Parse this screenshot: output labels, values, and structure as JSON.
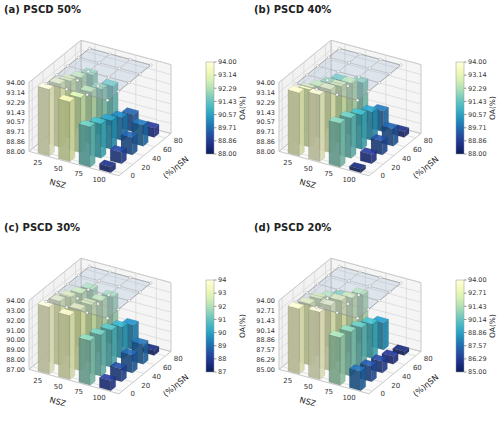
{
  "chart_data": [
    {
      "type": "bar3d",
      "title": "(a) PSCD 50%",
      "xlabel": "NSZ",
      "ylabel": "(%)ηSN",
      "x": [
        25,
        50,
        75,
        100
      ],
      "y": [
        0,
        20,
        40,
        60,
        80
      ],
      "values": [
        [
          93.8,
          93.2,
          91.5,
          88.5
        ],
        [
          93.5,
          92.8,
          91.0,
          89.0
        ],
        [
          93.0,
          92.5,
          90.5,
          89.5
        ],
        [
          92.5,
          92.0,
          90.0,
          89.8
        ],
        [
          92.0,
          91.5,
          89.5,
          88.8
        ]
      ],
      "xlim": [
        8,
        118
      ],
      "ylim": [
        -6,
        90
      ],
      "zlim": [
        88.0,
        94.0
      ],
      "xticks": [
        25,
        50,
        75,
        100
      ],
      "yticks": [
        0,
        20,
        40,
        60,
        80
      ],
      "zticks": [
        {
          "value": 88.0,
          "label": "88.00"
        },
        {
          "value": 88.86,
          "label": "88.86"
        },
        {
          "value": 89.71,
          "label": "89.71"
        },
        {
          "value": 90.57,
          "label": "90.57"
        },
        {
          "value": 91.43,
          "label": "91.43"
        },
        {
          "value": 92.29,
          "label": "92.29"
        },
        {
          "value": 93.14,
          "label": "93.14"
        },
        {
          "value": 94.0,
          "label": "94.00"
        }
      ],
      "colorbar_label": "OA(%)",
      "colorbar_range": [
        88.0,
        94.0
      ],
      "colorbar_ticks": [
        {
          "value": 88.0,
          "label": "88.00"
        },
        {
          "value": 88.86,
          "label": "88.86"
        },
        {
          "value": 89.71,
          "label": "89.71"
        },
        {
          "value": 90.57,
          "label": "90.57"
        },
        {
          "value": 91.43,
          "label": "91.43"
        },
        {
          "value": 92.29,
          "label": "92.29"
        },
        {
          "value": 93.14,
          "label": "93.14"
        },
        {
          "value": 94.0,
          "label": "94.00"
        }
      ],
      "grid": true
    },
    {
      "type": "bar3d",
      "title": "(b) PSCD 40%",
      "xlabel": "NSZ",
      "ylabel": "(%)ηSN",
      "x": [
        25,
        50,
        75,
        100
      ],
      "y": [
        0,
        20,
        40,
        60,
        80
      ],
      "values": [
        [
          93.5,
          93.8,
          91.8,
          88.3
        ],
        [
          93.0,
          93.5,
          91.5,
          88.8
        ],
        [
          92.5,
          93.0,
          91.0,
          89.2
        ],
        [
          92.0,
          92.5,
          90.5,
          89.5
        ],
        [
          91.5,
          91.8,
          89.8,
          88.5
        ]
      ],
      "xlim": [
        8,
        118
      ],
      "ylim": [
        -6,
        90
      ],
      "zlim": [
        88.0,
        94.0
      ],
      "xticks": [
        25,
        50,
        75,
        100
      ],
      "yticks": [
        0,
        20,
        40,
        60,
        80
      ],
      "zticks": [
        {
          "value": 88.0,
          "label": "88.00"
        },
        {
          "value": 88.86,
          "label": "88.86"
        },
        {
          "value": 89.71,
          "label": "89.71"
        },
        {
          "value": 90.57,
          "label": "90.57"
        },
        {
          "value": 91.43,
          "label": "91.43"
        },
        {
          "value": 92.29,
          "label": "92.29"
        },
        {
          "value": 93.14,
          "label": "93.14"
        },
        {
          "value": 94.0,
          "label": "94.00"
        }
      ],
      "colorbar_label": "OA(%)",
      "colorbar_range": [
        88.0,
        94.0
      ],
      "colorbar_ticks": [
        {
          "value": 88.0,
          "label": "88.00"
        },
        {
          "value": 88.86,
          "label": "88.86"
        },
        {
          "value": 89.71,
          "label": "89.71"
        },
        {
          "value": 90.57,
          "label": "90.57"
        },
        {
          "value": 91.43,
          "label": "91.43"
        },
        {
          "value": 92.29,
          "label": "92.29"
        },
        {
          "value": 93.14,
          "label": "93.14"
        },
        {
          "value": 94.0,
          "label": "94.00"
        }
      ],
      "grid": true
    },
    {
      "type": "bar3d",
      "title": "(c) PSCD 30%",
      "xlabel": "NSZ",
      "ylabel": "(%)ηSN",
      "x": [
        25,
        50,
        75,
        100
      ],
      "y": [
        0,
        20,
        40,
        60,
        80
      ],
      "values": [
        [
          93.8,
          93.5,
          91.5,
          88.0
        ],
        [
          93.5,
          93.2,
          91.2,
          88.3
        ],
        [
          93.0,
          92.8,
          90.8,
          88.8
        ],
        [
          92.5,
          92.3,
          90.2,
          89.0
        ],
        [
          92.0,
          91.8,
          89.5,
          87.5
        ]
      ],
      "xlim": [
        8,
        118
      ],
      "ylim": [
        -6,
        90
      ],
      "zlim": [
        87.0,
        94.0
      ],
      "xticks": [
        25,
        50,
        75,
        100
      ],
      "yticks": [
        0,
        20,
        40,
        60,
        80
      ],
      "zticks": [
        {
          "value": 87.0,
          "label": "87.00"
        },
        {
          "value": 88.0,
          "label": "88.00"
        },
        {
          "value": 89.0,
          "label": "89.00"
        },
        {
          "value": 90.0,
          "label": "90.00"
        },
        {
          "value": 91.0,
          "label": "91.00"
        },
        {
          "value": 92.0,
          "label": "92.00"
        },
        {
          "value": 93.0,
          "label": "93.00"
        },
        {
          "value": 94.0,
          "label": "94.00"
        }
      ],
      "colorbar_label": "OA(%)",
      "colorbar_range": [
        87.0,
        94.0
      ],
      "colorbar_ticks": [
        87,
        88,
        89,
        90,
        91,
        92,
        93,
        94
      ],
      "grid": true
    },
    {
      "type": "bar3d",
      "title": "(d) PSCD 20%",
      "xlabel": "NSZ",
      "ylabel": "(%)ηSN",
      "x": [
        25,
        50,
        75,
        100
      ],
      "y": [
        0,
        20,
        40,
        60,
        80
      ],
      "values": [
        [
          93.5,
          93.8,
          91.2,
          87.5
        ],
        [
          93.0,
          93.5,
          90.8,
          87.0
        ],
        [
          92.5,
          93.0,
          90.2,
          86.5
        ],
        [
          91.5,
          92.2,
          89.5,
          86.0
        ],
        [
          90.5,
          91.5,
          88.5,
          85.5
        ]
      ],
      "xlim": [
        8,
        118
      ],
      "ylim": [
        -6,
        90
      ],
      "zlim": [
        85.0,
        94.0
      ],
      "xticks": [
        25,
        50,
        75,
        100
      ],
      "yticks": [
        0,
        20,
        40,
        60,
        80
      ],
      "zticks": [
        {
          "value": 85.0,
          "label": "85.00"
        },
        {
          "value": 86.29,
          "label": "86.29"
        },
        {
          "value": 87.57,
          "label": "87.57"
        },
        {
          "value": 88.86,
          "label": "88.86"
        },
        {
          "value": 90.14,
          "label": "90.14"
        },
        {
          "value": 91.43,
          "label": "91.43"
        },
        {
          "value": 92.71,
          "label": "92.71"
        },
        {
          "value": 94.0,
          "label": "94.00"
        }
      ],
      "colorbar_label": "OA(%)",
      "colorbar_range": [
        85.0,
        94.0
      ],
      "colorbar_ticks": [
        {
          "value": 85.0,
          "label": "85.00"
        },
        {
          "value": 86.29,
          "label": "86.29"
        },
        {
          "value": 87.57,
          "label": "87.57"
        },
        {
          "value": 88.86,
          "label": "88.86"
        },
        {
          "value": 90.14,
          "label": "90.14"
        },
        {
          "value": 91.43,
          "label": "91.43"
        },
        {
          "value": 92.71,
          "label": "92.71"
        },
        {
          "value": 94.0,
          "label": "94.00"
        }
      ],
      "grid": true
    }
  ]
}
